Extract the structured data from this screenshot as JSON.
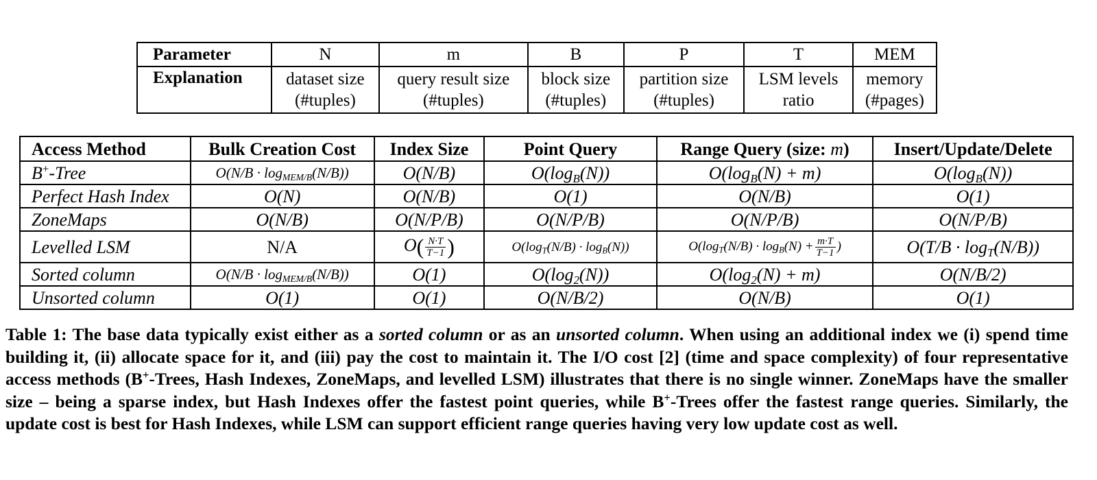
{
  "parameters": {
    "row_header_param": "Parameter",
    "row_header_expl": "Explanation",
    "columns": [
      {
        "symbol": "N",
        "explanation_line1": "dataset size",
        "explanation_line2": "(#tuples)"
      },
      {
        "symbol": "m",
        "explanation_line1": "query result size",
        "explanation_line2": "(#tuples)"
      },
      {
        "symbol": "B",
        "explanation_line1": "block size",
        "explanation_line2": "(#tuples)"
      },
      {
        "symbol": "P",
        "explanation_line1": "partition size",
        "explanation_line2": "(#tuples)"
      },
      {
        "symbol": "T",
        "explanation_line1": "LSM levels",
        "explanation_line2": "ratio"
      },
      {
        "symbol": "MEM",
        "explanation_line1": "memory",
        "explanation_line2": "(#pages)"
      }
    ]
  },
  "cost_table": {
    "headers": {
      "access_method": "Access Method",
      "bulk_creation": "Bulk Creation Cost",
      "index_size": "Index Size",
      "point_query": "Point Query",
      "range_query_prefix": "Range Query (size: ",
      "range_query_var": "m",
      "range_query_suffix": ")",
      "insert_update_delete": "Insert/Update/Delete"
    },
    "methods": {
      "btree_base": "B",
      "btree_sup": "+",
      "btree_suffix": "-Tree",
      "perfect_hash": "Perfect Hash Index",
      "zonemaps": "ZoneMaps",
      "levelled_lsm": "Levelled LSM",
      "sorted_column": "Sorted column",
      "unsorted_column": "Unsorted column"
    },
    "cells": {
      "btree_bulk_a": "O(N/B · log",
      "btree_bulk_sub": "MEM/B",
      "btree_bulk_b": "(N/B))",
      "btree_size": "O(N/B)",
      "btree_point_a": "O(log",
      "btree_point_sub": "B",
      "btree_point_b": "(N))",
      "btree_range_a": "O(log",
      "btree_range_sub": "B",
      "btree_range_b": "(N) + m)",
      "btree_iud_a": "O(log",
      "btree_iud_sub": "B",
      "btree_iud_b": "(N))",
      "hash_bulk": "O(N)",
      "hash_size": "O(N/B)",
      "hash_point": "O(1)",
      "hash_range": "O(N/B)",
      "hash_iud": "O(1)",
      "zm_bulk": "O(N/B)",
      "zm_size": "O(N/P/B)",
      "zm_point": "O(N/P/B)",
      "zm_range": "O(N/P/B)",
      "zm_iud": "O(N/P/B)",
      "lsm_bulk": "N/A",
      "lsm_size_o": "O",
      "lsm_size_num": "N·T",
      "lsm_size_den": "T−1",
      "lsm_point_a": "O(log",
      "lsm_point_sub1": "T",
      "lsm_point_b": "(N/B) · log",
      "lsm_point_sub2": "B",
      "lsm_point_c": "(N))",
      "lsm_range_a": "O(log",
      "lsm_range_sub1": "T",
      "lsm_range_b": "(N/B) · log",
      "lsm_range_sub2": "B",
      "lsm_range_c": "(N) +",
      "lsm_range_num": "m·T",
      "lsm_range_den": "T−1",
      "lsm_range_d": ")",
      "lsm_iud_a": "O(T/B · log",
      "lsm_iud_sub": "T",
      "lsm_iud_b": "(N/B))",
      "sorted_bulk_a": "O(N/B · log",
      "sorted_bulk_sub": "MEM/B",
      "sorted_bulk_b": "(N/B))",
      "sorted_size": "O(1)",
      "sorted_point_a": "O(log",
      "sorted_point_sub": "2",
      "sorted_point_b": "(N))",
      "sorted_range_a": "O(log",
      "sorted_range_sub": "2",
      "sorted_range_b": "(N) + m)",
      "sorted_iud": "O(N/B/2)",
      "unsorted_bulk": "O(1)",
      "unsorted_size": "O(1)",
      "unsorted_point": "O(N/B/2)",
      "unsorted_range": "O(N/B)",
      "unsorted_iud": "O(1)"
    }
  },
  "caption": {
    "p1": "Table 1: The base data typically exist either as a ",
    "em1": "sorted column",
    "p2": " or as an ",
    "em2": "unsorted column",
    "p3": ". When using an additional index we (i) spend time building it, (ii) allocate space for it, and (iii) pay the cost to maintain it. The I/O cost [2] (time and space complexity) of four representative access methods (B",
    "sup1": "+",
    "p4": "-Trees, Hash Indexes, ZoneMaps, and levelled LSM) illustrates that there is no single winner. ZoneMaps have the smaller size – being a sparse index, but Hash Indexes offer the fastest point queries, while B",
    "sup2": "+",
    "p5": "-Trees offer the fastest range queries. Similarly, the update cost is best for Hash Indexes, while LSM can support efficient range queries having very low update cost as well."
  }
}
